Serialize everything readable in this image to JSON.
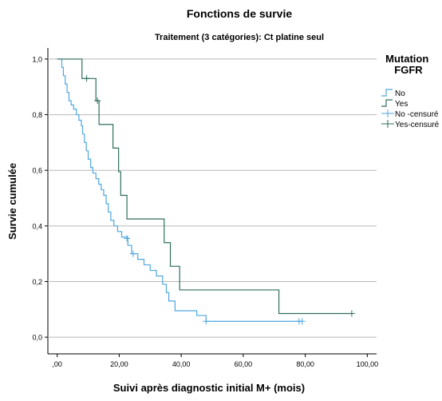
{
  "chart_data": {
    "type": "line",
    "title": "Fonctions de survie",
    "subtitle": "Traitement (3 catégories): Ct platine seul",
    "xlabel": "Suivi après diagnostic initial M+ (mois)",
    "ylabel": "Survie cumulée",
    "xlim": [
      -3,
      103
    ],
    "ylim": [
      -0.06,
      1.04
    ],
    "x_ticks": [
      ",00",
      "20,00",
      "40,00",
      "60,00",
      "80,00",
      "100,00"
    ],
    "x_tick_values": [
      0,
      20,
      40,
      60,
      80,
      100
    ],
    "y_ticks": [
      "0,0",
      "0,2",
      "0,4",
      "0,6",
      "0,8",
      "1,0"
    ],
    "y_tick_values": [
      0,
      0.2,
      0.4,
      0.6,
      0.8,
      1.0
    ],
    "grid": "horizontal",
    "legend": {
      "title": "Mutation FGFR",
      "position": "right",
      "entries": [
        {
          "label": "No",
          "series": "No",
          "kind": "step"
        },
        {
          "label": "Yes",
          "series": "Yes",
          "kind": "step"
        },
        {
          "label": "No -censuré",
          "series": "No",
          "kind": "censor"
        },
        {
          "label": "Yes-censuré",
          "series": "Yes",
          "kind": "censor"
        }
      ]
    },
    "series": [
      {
        "name": "No",
        "color": "#4fa7e0",
        "steps": [
          [
            0,
            1.0
          ],
          [
            1.5,
            0.97
          ],
          [
            2.0,
            0.94
          ],
          [
            2.6,
            0.91
          ],
          [
            3.2,
            0.88
          ],
          [
            3.8,
            0.85
          ],
          [
            4.5,
            0.835
          ],
          [
            5.3,
            0.82
          ],
          [
            6.2,
            0.8
          ],
          [
            7.0,
            0.78
          ],
          [
            7.8,
            0.76
          ],
          [
            8.2,
            0.73
          ],
          [
            8.8,
            0.7
          ],
          [
            9.4,
            0.67
          ],
          [
            10.0,
            0.64
          ],
          [
            10.8,
            0.61
          ],
          [
            11.5,
            0.59
          ],
          [
            12.5,
            0.57
          ],
          [
            13.4,
            0.55
          ],
          [
            14.2,
            0.53
          ],
          [
            15.0,
            0.51
          ],
          [
            15.8,
            0.48
          ],
          [
            16.5,
            0.45
          ],
          [
            17.3,
            0.42
          ],
          [
            18.3,
            0.4
          ],
          [
            19.5,
            0.38
          ],
          [
            20.8,
            0.36
          ],
          [
            22.8,
            0.33
          ],
          [
            24.0,
            0.3
          ],
          [
            26.0,
            0.28
          ],
          [
            28.0,
            0.26
          ],
          [
            30.0,
            0.24
          ],
          [
            32.0,
            0.22
          ],
          [
            34.0,
            0.19
          ],
          [
            35.2,
            0.16
          ],
          [
            36.0,
            0.13
          ],
          [
            38.0,
            0.095
          ],
          [
            45.0,
            0.078
          ],
          [
            48.0,
            0.057
          ],
          [
            79.0,
            0.057
          ]
        ],
        "censored": [
          [
            22.5,
            0.355
          ],
          [
            24.5,
            0.3
          ],
          [
            48.0,
            0.057
          ],
          [
            78.0,
            0.057
          ],
          [
            79.0,
            0.057
          ]
        ]
      },
      {
        "name": "Yes",
        "color": "#2f6e5e",
        "steps": [
          [
            0,
            1.0
          ],
          [
            8.0,
            0.93
          ],
          [
            12.5,
            0.85
          ],
          [
            13.5,
            0.765
          ],
          [
            18.0,
            0.68
          ],
          [
            19.8,
            0.595
          ],
          [
            20.5,
            0.51
          ],
          [
            22.5,
            0.425
          ],
          [
            34.5,
            0.34
          ],
          [
            36.5,
            0.255
          ],
          [
            39.5,
            0.17
          ],
          [
            71.5,
            0.085
          ],
          [
            95.0,
            0.085
          ]
        ],
        "censored": [
          [
            9.5,
            0.93
          ],
          [
            13.0,
            0.85
          ],
          [
            95.0,
            0.085
          ]
        ]
      }
    ]
  }
}
